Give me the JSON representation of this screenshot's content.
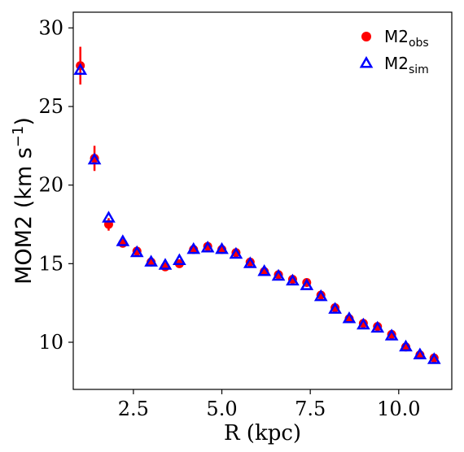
{
  "chart_data": {
    "type": "scatter",
    "xlabel": "R (kpc)",
    "ylabel": {
      "text": "MOM2 (km s",
      "sup": "−1",
      "close": ")"
    },
    "xlim": [
      0.8,
      11.5
    ],
    "ylim": [
      7,
      31
    ],
    "xticks": [
      2.5,
      5.0,
      7.5,
      10.0
    ],
    "xtick_labels": [
      "2.5",
      "5.0",
      "7.5",
      "10.0"
    ],
    "yticks": [
      10,
      15,
      20,
      25,
      30
    ],
    "ytick_labels": [
      "10",
      "15",
      "20",
      "25",
      "30"
    ],
    "grid": false,
    "legend_position": "top-right",
    "series": [
      {
        "name": "M2",
        "name_sub": "obs",
        "marker": "circle",
        "color": "#ff0000",
        "x": [
          1.0,
          1.4,
          1.8,
          2.2,
          2.6,
          3.0,
          3.4,
          3.8,
          4.2,
          4.6,
          5.0,
          5.4,
          5.8,
          6.2,
          6.6,
          7.0,
          7.4,
          7.8,
          8.2,
          8.6,
          9.0,
          9.4,
          9.8,
          10.2,
          10.6,
          11.0
        ],
        "y": [
          27.6,
          21.7,
          17.5,
          16.3,
          15.8,
          15.1,
          14.8,
          15.0,
          15.9,
          16.1,
          15.9,
          15.7,
          15.1,
          14.5,
          14.3,
          14.0,
          13.8,
          13.0,
          12.2,
          11.5,
          11.2,
          11.0,
          10.5,
          9.7,
          9.2,
          9.0
        ],
        "err": [
          1.2,
          0.8,
          0.4,
          0.2,
          0.15,
          0.15,
          0.15,
          0.15,
          0.15,
          0.15,
          0.15,
          0.15,
          0.15,
          0.15,
          0.15,
          0.15,
          0.15,
          0.15,
          0.15,
          0.15,
          0.15,
          0.15,
          0.15,
          0.15,
          0.15,
          0.15
        ]
      },
      {
        "name": "M2",
        "name_sub": "sim",
        "marker": "triangle",
        "color": "#0000ff",
        "x": [
          1.0,
          1.4,
          1.8,
          2.2,
          2.6,
          3.0,
          3.4,
          3.8,
          4.2,
          4.6,
          5.0,
          5.4,
          5.8,
          6.2,
          6.6,
          7.0,
          7.4,
          7.8,
          8.2,
          8.6,
          9.0,
          9.4,
          9.8,
          10.2,
          10.6,
          11.0
        ],
        "y": [
          27.3,
          21.6,
          17.9,
          16.4,
          15.7,
          15.1,
          14.9,
          15.2,
          15.9,
          16.0,
          15.9,
          15.6,
          15.0,
          14.5,
          14.2,
          13.9,
          13.6,
          12.9,
          12.1,
          11.5,
          11.1,
          10.9,
          10.4,
          9.7,
          9.2,
          8.9
        ]
      }
    ]
  }
}
